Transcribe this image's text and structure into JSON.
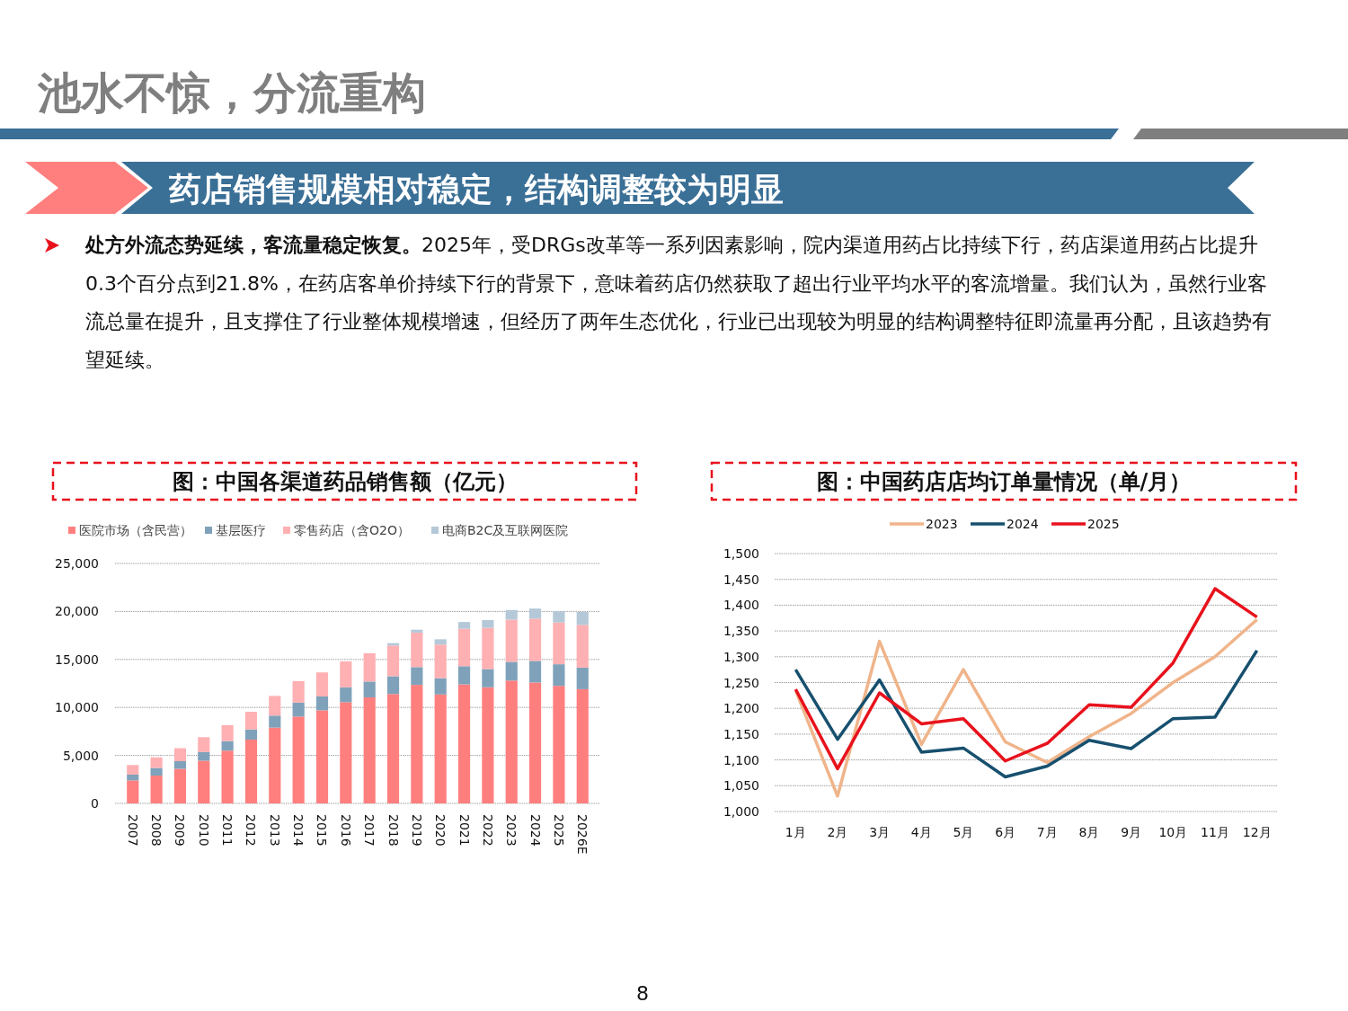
{
  "chart_data": [
    {
      "type": "bar",
      "stacked": true,
      "title": "图：中国各渠道药品销售额（亿元）",
      "annotations": [
        "池水不惊，分流重构",
        "药店销售规模相对稳定，结构调整较为明显",
        "处方外流态势延续，客流量稳定恢复。",
        "2025年，受DRGs改革等一系列因素影响，院内渠道用药占比持续下行，药店渠道用药占比提升0.3个百分点到21.8%，在药店客单价持续下行的背景下，意味着药店仍然获取了超出行业平均水平的客流增量。我们认为，虽然行业客流总量在提升，且支撑住了行业整体规模增速，但经历了两年生态优化，行业已出现较为明显的结构调整特征即流量再分配，且该趋势有望延续。",
        "8"
      ],
      "categories": [
        "2007",
        "2008",
        "2009",
        "2010",
        "2011",
        "2012",
        "2013",
        "2014",
        "2015",
        "2016",
        "2017",
        "2018",
        "2019",
        "2020",
        "2021",
        "2022",
        "2023",
        "2024",
        "2025",
        "2026E"
      ],
      "series": [
        {
          "name": "医院市场（含民营）",
          "color": "#ff7f7f",
          "values": [
            2400,
            2900,
            3600,
            4450,
            5500,
            6650,
            7900,
            9050,
            9700,
            10550,
            11050,
            11400,
            12350,
            11350,
            12400,
            12100,
            12800,
            12600,
            12250,
            11900
          ]
        },
        {
          "name": "基层医疗",
          "color": "#7fa2ba",
          "values": [
            600,
            800,
            800,
            900,
            1000,
            1050,
            1250,
            1450,
            1450,
            1550,
            1650,
            1850,
            1850,
            1700,
            1900,
            1900,
            1950,
            2250,
            2250,
            2250
          ]
        },
        {
          "name": "零售药店（含O2O）",
          "color": "#ffb0b3",
          "values": [
            1000,
            1100,
            1350,
            1550,
            1650,
            1850,
            2050,
            2250,
            2500,
            2700,
            2950,
            3200,
            3600,
            3500,
            3900,
            4300,
            4400,
            4400,
            4350,
            4450
          ]
        },
        {
          "name": "电商B2C及互联网医院",
          "color": "#b4c8d8",
          "values": [
            null,
            null,
            null,
            null,
            null,
            null,
            null,
            null,
            null,
            null,
            null,
            250,
            300,
            550,
            700,
            800,
            1000,
            1050,
            1150,
            1350
          ]
        }
      ],
      "ylim": [
        0,
        25000
      ],
      "yticks": [
        {
          "value": 0,
          "label": "0"
        },
        {
          "value": 5000,
          "label": "5,000"
        },
        {
          "value": 10000,
          "label": "10,000"
        },
        {
          "value": 15000,
          "label": "15,000"
        },
        {
          "value": 20000,
          "label": "20,000"
        },
        {
          "value": 25000,
          "label": "25,000"
        }
      ],
      "grid": "y",
      "legend": "top"
    },
    {
      "type": "line",
      "title": "图：中国药店店均订单量情况（单/月）",
      "categories": [
        "1月",
        "2月",
        "3月",
        "4月",
        "5月",
        "6月",
        "7月",
        "8月",
        "9月",
        "10月",
        "11月",
        "12月"
      ],
      "series": [
        {
          "name": "2023",
          "color": "#f0b48a",
          "values": [
            1235,
            1030,
            1330,
            1130,
            1275,
            1135,
            1095,
            1145,
            1190,
            1250,
            1300,
            1372
          ]
        },
        {
          "name": "2024",
          "color": "#17506e",
          "values": [
            1275,
            1140,
            1255,
            1115,
            1123,
            1067,
            1088,
            1138,
            1122,
            1180,
            1183,
            1312
          ]
        },
        {
          "name": "2025",
          "color": "#e8121c",
          "values": [
            1237,
            1083,
            1230,
            1170,
            1180,
            1098,
            1132,
            1207,
            1202,
            1288,
            1432,
            1377
          ]
        }
      ],
      "ylim": [
        1000,
        1500
      ],
      "yticks": [
        {
          "value": 1000,
          "label": "1,000"
        },
        {
          "value": 1050,
          "label": "1,050"
        },
        {
          "value": 1100,
          "label": "1,100"
        },
        {
          "value": 1150,
          "label": "1,150"
        },
        {
          "value": 1200,
          "label": "1,200"
        },
        {
          "value": 1250,
          "label": "1,250"
        },
        {
          "value": 1300,
          "label": "1,300"
        },
        {
          "value": 1350,
          "label": "1,350"
        },
        {
          "value": 1400,
          "label": "1,400"
        },
        {
          "value": 1450,
          "label": "1,450"
        },
        {
          "value": 1500,
          "label": "1,500"
        }
      ],
      "grid": "y",
      "legend": "top",
      "marker": "none",
      "line_style": "solid"
    }
  ]
}
